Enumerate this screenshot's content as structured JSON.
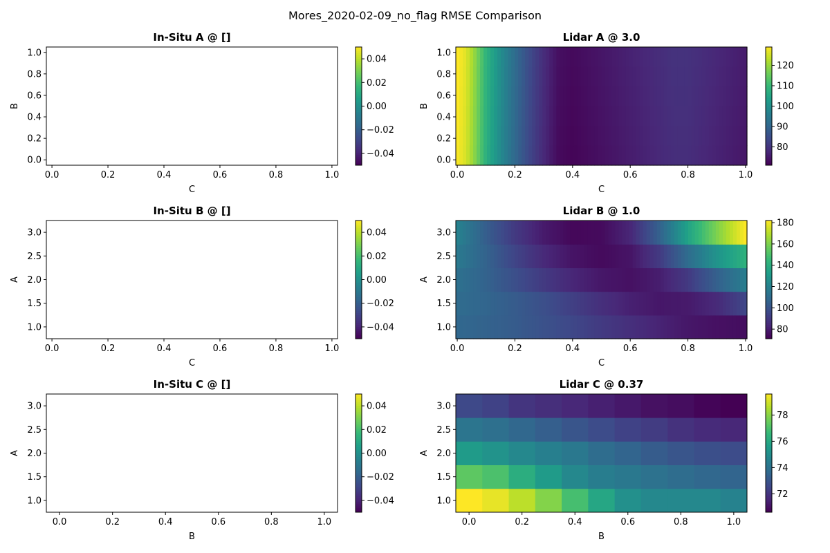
{
  "figure": {
    "suptitle": "Mores_2020-02-09_no_flag RMSE Comparison"
  },
  "chart_data": [
    {
      "type": "heatmap",
      "title": "In-Situ A @ []",
      "xlabel": "C",
      "ylabel": "B",
      "empty": true,
      "xlim": [
        -0.02,
        1.02
      ],
      "ylim": [
        -0.05,
        1.05
      ],
      "xticks": [
        "0.0",
        "0.2",
        "0.4",
        "0.6",
        "0.8",
        "1.0"
      ],
      "yticks": [
        "0.0",
        "0.2",
        "0.4",
        "0.6",
        "0.8",
        "1.0"
      ],
      "colorbar": {
        "range": [
          -0.05,
          0.05
        ],
        "ticks": [
          "−0.04",
          "−0.02",
          "0.00",
          "0.02",
          "0.04"
        ]
      }
    },
    {
      "type": "heatmap",
      "title": "Lidar A @ 3.0",
      "xlabel": "C",
      "ylabel": "B",
      "xlim": [
        -0.005,
        1.005
      ],
      "ylim": [
        -0.05,
        1.05
      ],
      "xticks": [
        "0.0",
        "0.2",
        "0.4",
        "0.6",
        "0.8",
        "1.0"
      ],
      "yticks": [
        "0.0",
        "0.2",
        "0.4",
        "0.6",
        "0.8",
        "1.0"
      ],
      "colorbar": {
        "range": [
          71,
          129
        ],
        "ticks": [
          "80",
          "90",
          "100",
          "110",
          "120"
        ]
      },
      "x_profile": [
        [
          0,
          129
        ],
        [
          0.03,
          126
        ],
        [
          0.06,
          119
        ],
        [
          0.1,
          108
        ],
        [
          0.15,
          99
        ],
        [
          0.2,
          91
        ],
        [
          0.25,
          84
        ],
        [
          0.3,
          78
        ],
        [
          0.35,
          73
        ],
        [
          0.4,
          72
        ],
        [
          0.45,
          73
        ],
        [
          0.5,
          74
        ],
        [
          0.55,
          75
        ],
        [
          0.6,
          76
        ],
        [
          0.65,
          77
        ],
        [
          0.7,
          78
        ],
        [
          0.75,
          79
        ],
        [
          0.8,
          79
        ],
        [
          0.85,
          78
        ],
        [
          0.9,
          77
        ],
        [
          0.95,
          76
        ],
        [
          1.0,
          75
        ]
      ],
      "y_trend": 1
    },
    {
      "type": "heatmap",
      "title": "In-Situ B @ []",
      "xlabel": "C",
      "ylabel": "A",
      "empty": true,
      "xlim": [
        -0.02,
        1.02
      ],
      "ylim": [
        0.75,
        3.25
      ],
      "xticks": [
        "0.0",
        "0.2",
        "0.4",
        "0.6",
        "0.8",
        "1.0"
      ],
      "yticks": [
        "1.0",
        "1.5",
        "2.0",
        "2.5",
        "3.0"
      ],
      "colorbar": {
        "range": [
          -0.05,
          0.05
        ],
        "ticks": [
          "−0.04",
          "−0.02",
          "0.00",
          "0.02",
          "0.04"
        ]
      }
    },
    {
      "type": "heatmap",
      "title": "Lidar B @ 1.0",
      "xlabel": "C",
      "ylabel": "A",
      "xlim": [
        -0.005,
        1.005
      ],
      "ylim": [
        0.75,
        3.25
      ],
      "xticks": [
        "0.0",
        "0.2",
        "0.4",
        "0.6",
        "0.8",
        "1.0"
      ],
      "yticks": [
        "1.0",
        "1.5",
        "2.0",
        "2.5",
        "3.0"
      ],
      "colorbar": {
        "range": [
          71,
          182
        ],
        "ticks": [
          "80",
          "100",
          "120",
          "140",
          "160",
          "180"
        ]
      },
      "rows": [
        {
          "y": 1.0,
          "profile": [
            [
              0,
              108
            ],
            [
              0.1,
              106
            ],
            [
              0.2,
              103
            ],
            [
              0.3,
              99
            ],
            [
              0.4,
              95
            ],
            [
              0.5,
              90
            ],
            [
              0.6,
              86
            ],
            [
              0.7,
              82
            ],
            [
              0.8,
              78
            ],
            [
              0.9,
              76
            ],
            [
              1.0,
              75
            ]
          ]
        },
        {
          "y": 1.5,
          "profile": [
            [
              0,
              110
            ],
            [
              0.1,
              107
            ],
            [
              0.2,
              103
            ],
            [
              0.3,
              98
            ],
            [
              0.4,
              92
            ],
            [
              0.5,
              86
            ],
            [
              0.6,
              81
            ],
            [
              0.7,
              78
            ],
            [
              0.8,
              79
            ],
            [
              0.9,
              84
            ],
            [
              1.0,
              95
            ]
          ]
        },
        {
          "y": 2.0,
          "profile": [
            [
              0,
              112
            ],
            [
              0.1,
              106
            ],
            [
              0.2,
              98
            ],
            [
              0.3,
              90
            ],
            [
              0.4,
              83
            ],
            [
              0.5,
              78
            ],
            [
              0.6,
              76
            ],
            [
              0.7,
              80
            ],
            [
              0.8,
              90
            ],
            [
              0.9,
              105
            ],
            [
              1.0,
              118
            ]
          ]
        },
        {
          "y": 2.5,
          "profile": [
            [
              0,
              116
            ],
            [
              0.1,
              106
            ],
            [
              0.2,
              94
            ],
            [
              0.3,
              84
            ],
            [
              0.4,
              77
            ],
            [
              0.5,
              74
            ],
            [
              0.6,
              77
            ],
            [
              0.7,
              90
            ],
            [
              0.8,
              110
            ],
            [
              0.9,
              128
            ],
            [
              1.0,
              142
            ]
          ]
        },
        {
          "y": 3.0,
          "profile": [
            [
              0,
              120
            ],
            [
              0.1,
              104
            ],
            [
              0.2,
              90
            ],
            [
              0.3,
              79
            ],
            [
              0.4,
              73
            ],
            [
              0.5,
              74
            ],
            [
              0.6,
              83
            ],
            [
              0.7,
              105
            ],
            [
              0.8,
              135
            ],
            [
              0.9,
              160
            ],
            [
              1.0,
              182
            ]
          ]
        }
      ]
    },
    {
      "type": "heatmap",
      "title": "In-Situ C @ []",
      "xlabel": "B",
      "ylabel": "A",
      "empty": true,
      "xlim": [
        -0.05,
        1.05
      ],
      "ylim": [
        0.75,
        3.25
      ],
      "xticks": [
        "0.0",
        "0.2",
        "0.4",
        "0.6",
        "0.8",
        "1.0"
      ],
      "yticks": [
        "1.0",
        "1.5",
        "2.0",
        "2.5",
        "3.0"
      ],
      "colorbar": {
        "range": [
          -0.05,
          0.05
        ],
        "ticks": [
          "−0.04",
          "−0.02",
          "0.00",
          "0.02",
          "0.04"
        ]
      }
    },
    {
      "type": "heatmap",
      "title": "Lidar C @ 0.37",
      "xlabel": "B",
      "ylabel": "A",
      "xlim": [
        -0.05,
        1.05
      ],
      "ylim": [
        0.75,
        3.25
      ],
      "xticks": [
        "0.0",
        "0.2",
        "0.4",
        "0.6",
        "0.8",
        "1.0"
      ],
      "yticks": [
        "1.0",
        "1.5",
        "2.0",
        "2.5",
        "3.0"
      ],
      "colorbar": {
        "range": [
          70.6,
          79.6
        ],
        "ticks": [
          "72",
          "74",
          "76",
          "78"
        ]
      },
      "x": [
        0.0,
        0.1,
        0.2,
        0.3,
        0.4,
        0.5,
        0.6,
        0.7,
        0.8,
        0.9,
        1.0
      ],
      "y": [
        1.0,
        1.5,
        2.0,
        2.5,
        3.0
      ],
      "z": [
        [
          79.6,
          79.3,
          78.7,
          77.9,
          76.9,
          75.9,
          75.1,
          74.8,
          74.8,
          74.8,
          74.6
        ],
        [
          77.3,
          77.0,
          76.2,
          75.5,
          74.8,
          74.4,
          74.2,
          74.0,
          73.8,
          73.6,
          73.5
        ],
        [
          75.5,
          75.2,
          74.8,
          74.5,
          74.2,
          73.8,
          73.5,
          73.2,
          73.0,
          72.8,
          72.7
        ],
        [
          74.1,
          73.9,
          73.6,
          73.3,
          73.0,
          72.7,
          72.4,
          72.2,
          71.9,
          71.7,
          71.6
        ],
        [
          72.6,
          72.4,
          72.0,
          71.8,
          71.6,
          71.4,
          71.2,
          71.0,
          70.9,
          70.7,
          70.6
        ]
      ]
    }
  ]
}
